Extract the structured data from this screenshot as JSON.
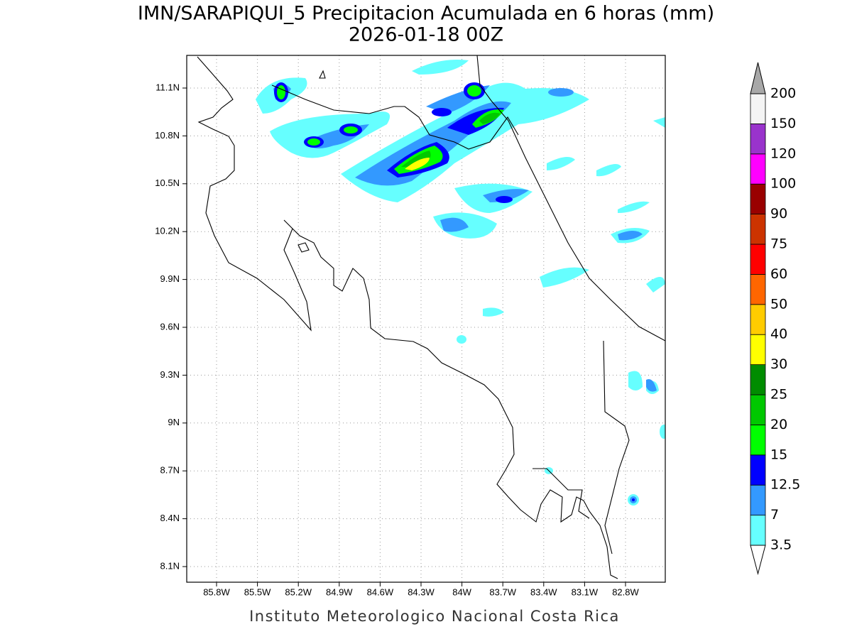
{
  "title": "IMN/SARAPIQUI_5 Precipitacion Acumulada en 6 horas (mm)",
  "subtitle": "2026-01-18 00Z",
  "map": {
    "lat_labels": [
      "11.1N",
      "10.8N",
      "10.5N",
      "10.2N",
      "9.9N",
      "9.6N",
      "9.3N",
      "9N",
      "8.7N",
      "8.4N",
      "8.1N"
    ],
    "lon_labels": [
      "85.8W",
      "85.5W",
      "85.2W",
      "84.9W",
      "84.6W",
      "84.3W",
      "84W",
      "83.7W",
      "83.4W",
      "83.1W",
      "82.8W"
    ]
  },
  "colorbar": {
    "levels": [
      3.5,
      7,
      12.5,
      15,
      20,
      25,
      30,
      40,
      50,
      60,
      75,
      90,
      100,
      120,
      150,
      200
    ],
    "colors": [
      "#66ffff",
      "#3399ff",
      "#0000ff",
      "#00ff00",
      "#00c800",
      "#008c00",
      "#ffff00",
      "#ffcc00",
      "#ff6600",
      "#ff0000",
      "#cc3300",
      "#990000",
      "#ff00ff",
      "#9933cc",
      "#f4f4f4"
    ],
    "over_color": "#a8a8a8",
    "under_color": "#ffffff"
  },
  "footer": "Instituto Meteorologico Nacional Costa Rica"
}
